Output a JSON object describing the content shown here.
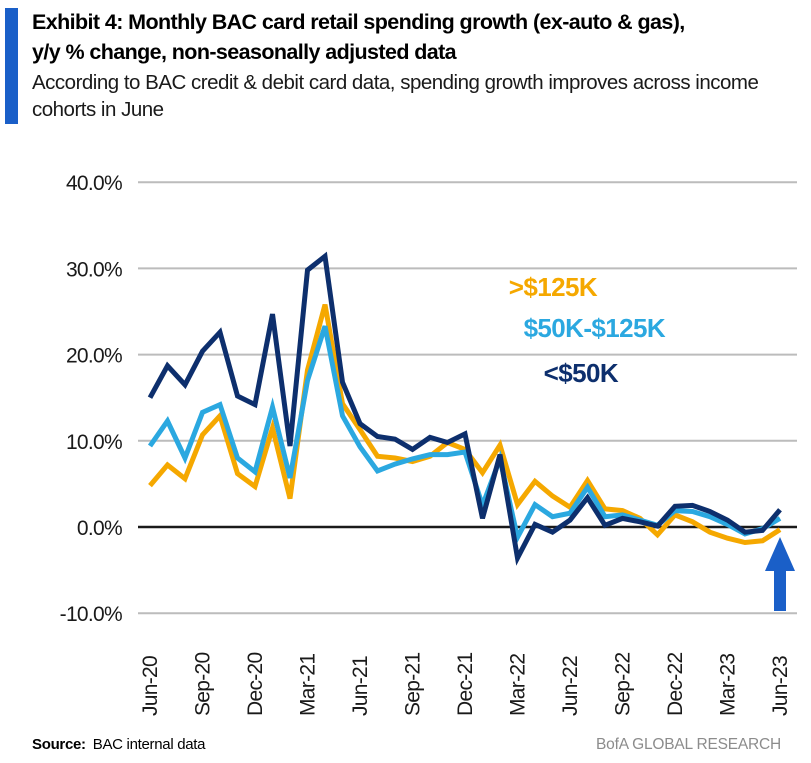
{
  "header": {
    "title_line1": "Exhibit 4: Monthly BAC card retail spending growth (ex-auto & gas),",
    "title_line2": "y/y % change, non-seasonally adjusted data",
    "subtitle": "According to BAC credit & debit card data, spending growth improves across income cohorts in June",
    "accent_color": "#1A5FC8"
  },
  "chart_data": {
    "type": "line",
    "title": "Monthly BAC card retail spending growth (ex-auto & gas), y/y % change, non-seasonally adjusted",
    "xlabel": "",
    "ylabel": "",
    "grid": "horizontal",
    "legend_position": "inside-top-right",
    "ylim": [
      -10,
      40
    ],
    "grid_color": "#BCBCBC",
    "zero_line_color": "#1a1a1a",
    "x": [
      "Jun-20",
      "Jul-20",
      "Aug-20",
      "Sep-20",
      "Oct-20",
      "Nov-20",
      "Dec-20",
      "Jan-21",
      "Feb-21",
      "Mar-21",
      "Apr-21",
      "May-21",
      "Jun-21",
      "Jul-21",
      "Aug-21",
      "Sep-21",
      "Oct-21",
      "Nov-21",
      "Dec-21",
      "Jan-22",
      "Feb-22",
      "Mar-22",
      "Apr-22",
      "May-22",
      "Jun-22",
      "Jul-22",
      "Aug-22",
      "Sep-22",
      "Oct-22",
      "Nov-22",
      "Dec-22",
      "Jan-23",
      "Feb-23",
      "Mar-23",
      "Apr-23",
      "May-23",
      "Jun-23"
    ],
    "x_tick_labels": [
      "Jun-20",
      "Sep-20",
      "Dec-20",
      "Mar-21",
      "Jun-21",
      "Sep-21",
      "Dec-21",
      "Mar-22",
      "Jun-22",
      "Sep-22",
      "Dec-22",
      "Mar-23",
      "Jun-23"
    ],
    "y_axis": {
      "ticks": [
        {
          "value": 40,
          "label": "40.0%"
        },
        {
          "value": 30,
          "label": "30.0%"
        },
        {
          "value": 20,
          "label": "20.0%"
        },
        {
          "value": 10,
          "label": "10.0%"
        },
        {
          "value": 0,
          "label": "0.0%"
        },
        {
          "value": -10,
          "label": "-10.0%"
        }
      ]
    },
    "series": [
      {
        "name": ">$125K",
        "slug": "over-125k",
        "color": "#F5A800",
        "values": [
          4.8,
          7.2,
          5.6,
          10.7,
          12.9,
          6.2,
          4.7,
          11.5,
          3.3,
          18.2,
          25.8,
          14.3,
          11.3,
          8.2,
          8.0,
          7.6,
          8.2,
          9.8,
          9.0,
          6.3,
          9.5,
          2.6,
          5.3,
          3.6,
          2.3,
          5.4,
          2.1,
          1.9,
          1.0,
          -0.9,
          1.4,
          0.6,
          -0.6,
          -1.3,
          -1.8,
          -1.6,
          -0.3
        ]
      },
      {
        "name": "$50K-$125K",
        "slug": "50k-125k",
        "color": "#2BA8E0",
        "values": [
          9.4,
          12.3,
          8.0,
          13.3,
          14.2,
          8.0,
          6.4,
          13.9,
          5.7,
          17.0,
          23.3,
          12.9,
          9.3,
          6.5,
          7.3,
          7.9,
          8.4,
          8.4,
          8.7,
          2.5,
          7.9,
          -1.2,
          2.6,
          1.2,
          1.6,
          4.6,
          1.2,
          1.4,
          0.8,
          0.2,
          1.9,
          1.8,
          1.2,
          0.3,
          -0.8,
          -0.2,
          1.0
        ]
      },
      {
        "name": "<$50K",
        "slug": "under-50k",
        "color": "#0D2F6D",
        "values": [
          15.0,
          18.7,
          16.5,
          20.4,
          22.6,
          15.2,
          14.2,
          24.7,
          9.4,
          29.8,
          31.4,
          16.8,
          12.0,
          10.5,
          10.2,
          9.0,
          10.4,
          9.8,
          10.8,
          1.0,
          8.4,
          -3.6,
          0.3,
          -0.6,
          0.8,
          3.4,
          0.2,
          1.0,
          0.6,
          0.1,
          2.4,
          2.5,
          1.8,
          0.8,
          -0.6,
          -0.4,
          2.0
        ]
      }
    ],
    "annotation": {
      "shape": "up-arrow",
      "month": "Jun-23",
      "color": "#1A5FC8"
    }
  },
  "footer": {
    "source_label": "Source:",
    "source_text": "BAC internal data",
    "brand": "BofA GLOBAL RESEARCH"
  }
}
